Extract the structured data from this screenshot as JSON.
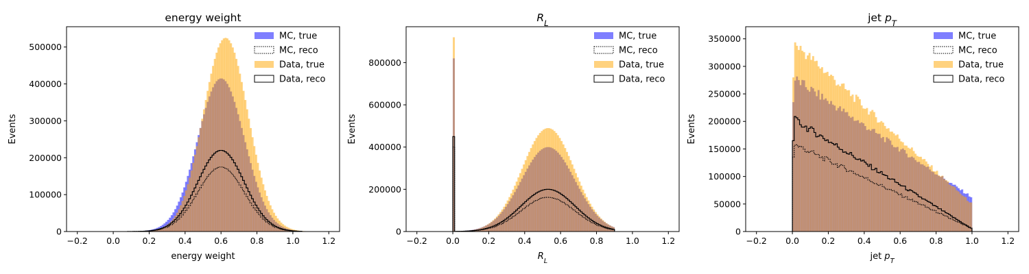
{
  "figure": {
    "background": "#ffffff"
  },
  "colors": {
    "mc_true": "#0000ff",
    "data_true": "#ffa500",
    "overlap": "#b98b7a",
    "reco": "#000000"
  },
  "chart_data": [
    {
      "type": "histogram",
      "title": "energy weight",
      "title_mathtext": false,
      "xlabel": "energy weight",
      "xlabel_mathtext": false,
      "ylabel": "Events",
      "xlim": [
        -0.26,
        1.26
      ],
      "ylim": [
        0,
        555000
      ],
      "xticks": [
        -0.2,
        0.0,
        0.2,
        0.4,
        0.6,
        0.8,
        1.0,
        1.2
      ],
      "xtick_labels": [
        "−0.2",
        "0.0",
        "0.2",
        "0.4",
        "0.6",
        "0.8",
        "1.0",
        "1.2"
      ],
      "yticks": [
        0,
        100000,
        200000,
        300000,
        400000,
        500000
      ],
      "ytick_labels": [
        "0",
        "100000",
        "200000",
        "300000",
        "400000",
        "500000"
      ],
      "legend": {
        "placement": "upper right",
        "entries": [
          "MC, true",
          "MC, reco",
          "Data, true",
          "Data, reco"
        ]
      },
      "series": [
        {
          "name": "MC, true",
          "style": "filled",
          "color": "#0000ff",
          "alpha": 0.5,
          "shape": {
            "kind": "gauss",
            "peak": 415000,
            "mu": 0.6,
            "sigma": 0.13,
            "min": 0.08,
            "max": 1.05
          }
        },
        {
          "name": "Data, true",
          "style": "filled",
          "color": "#ffa500",
          "alpha": 0.5,
          "shape": {
            "kind": "gauss",
            "peak": 525000,
            "mu": 0.625,
            "sigma": 0.125,
            "min": 0.08,
            "max": 1.08
          }
        },
        {
          "name": "MC, reco",
          "style": "dotted-step",
          "color": "#000000",
          "shape": {
            "kind": "gauss",
            "peak": 175000,
            "mu": 0.6,
            "sigma": 0.13,
            "min": 0.08,
            "max": 1.05
          }
        },
        {
          "name": "Data, reco",
          "style": "step",
          "color": "#000000",
          "shape": {
            "kind": "gauss",
            "peak": 220000,
            "mu": 0.6,
            "sigma": 0.13,
            "min": 0.08,
            "max": 1.05
          }
        }
      ]
    },
    {
      "type": "histogram",
      "title": "R_L",
      "title_mathtext": true,
      "xlabel": "R_L",
      "xlabel_mathtext": true,
      "ylabel": "Events",
      "xlim": [
        -0.26,
        1.26
      ],
      "ylim": [
        0,
        970000
      ],
      "xticks": [
        -0.2,
        0.0,
        0.2,
        0.4,
        0.6,
        0.8,
        1.0,
        1.2
      ],
      "xtick_labels": [
        "−0.2",
        "0.0",
        "0.2",
        "0.4",
        "0.6",
        "0.8",
        "1.0",
        "1.2"
      ],
      "yticks": [
        0,
        200000,
        400000,
        600000,
        800000
      ],
      "ytick_labels": [
        "0",
        "200000",
        "400000",
        "600000",
        "800000"
      ],
      "legend": {
        "placement": "upper right",
        "entries": [
          "MC, true",
          "MC, reco",
          "Data, true",
          "Data, reco"
        ]
      },
      "series": [
        {
          "name": "MC, true",
          "style": "filled",
          "color": "#0000ff",
          "alpha": 0.5,
          "shape": {
            "kind": "gauss",
            "peak": 400000,
            "mu": 0.53,
            "sigma": 0.15,
            "min": 0.0,
            "max": 0.9,
            "spike": 820000
          }
        },
        {
          "name": "Data, true",
          "style": "filled",
          "color": "#ffa500",
          "alpha": 0.5,
          "shape": {
            "kind": "gauss",
            "peak": 490000,
            "mu": 0.53,
            "sigma": 0.145,
            "min": 0.0,
            "max": 0.9,
            "spike": 920000
          }
        },
        {
          "name": "MC, reco",
          "style": "dotted-step",
          "color": "#000000",
          "shape": {
            "kind": "gauss",
            "peak": 162000,
            "mu": 0.53,
            "sigma": 0.15,
            "min": 0.0,
            "max": 0.9,
            "spike": 400000
          }
        },
        {
          "name": "Data, reco",
          "style": "step",
          "color": "#000000",
          "shape": {
            "kind": "gauss",
            "peak": 200000,
            "mu": 0.53,
            "sigma": 0.15,
            "min": 0.0,
            "max": 0.9,
            "spike": 450000
          }
        }
      ]
    },
    {
      "type": "histogram",
      "title": "jet p_T",
      "title_mathtext": true,
      "xlabel": "jet p_T",
      "xlabel_mathtext": true,
      "ylabel": "Events",
      "xlim": [
        -0.26,
        1.26
      ],
      "ylim": [
        0,
        372000
      ],
      "xticks": [
        -0.2,
        0.0,
        0.2,
        0.4,
        0.6,
        0.8,
        1.0,
        1.2
      ],
      "xtick_labels": [
        "−0.2",
        "0.0",
        "0.2",
        "0.4",
        "0.6",
        "0.8",
        "1.0",
        "1.2"
      ],
      "yticks": [
        0,
        50000,
        100000,
        150000,
        200000,
        250000,
        300000,
        350000
      ],
      "ytick_labels": [
        "0",
        "50000",
        "100000",
        "150000",
        "200000",
        "250000",
        "300000",
        "350000"
      ],
      "legend": {
        "placement": "upper right",
        "entries": [
          "MC, true",
          "MC, reco",
          "Data, true",
          "Data, reco"
        ]
      },
      "series": [
        {
          "name": "MC, true",
          "style": "filled",
          "color": "#0000ff",
          "alpha": 0.5,
          "shape": {
            "kind": "falling",
            "start": 280000,
            "end": 62000,
            "first": 235000,
            "min": 0.0,
            "max": 1.0
          }
        },
        {
          "name": "Data, true",
          "style": "filled",
          "color": "#ffa500",
          "alpha": 0.5,
          "shape": {
            "kind": "falling",
            "start": 345000,
            "end": 50000,
            "first": 280000,
            "min": 0.0,
            "max": 1.0
          }
        },
        {
          "name": "MC, reco",
          "style": "dotted-step",
          "color": "#000000",
          "shape": {
            "kind": "falling",
            "start": 160000,
            "end": 5000,
            "first": 135000,
            "min": 0.0,
            "max": 1.0
          }
        },
        {
          "name": "Data, reco",
          "style": "step",
          "color": "#000000",
          "shape": {
            "kind": "falling",
            "start": 205000,
            "end": 5000,
            "first": 165000,
            "min": 0.0,
            "max": 1.0
          }
        }
      ]
    }
  ]
}
